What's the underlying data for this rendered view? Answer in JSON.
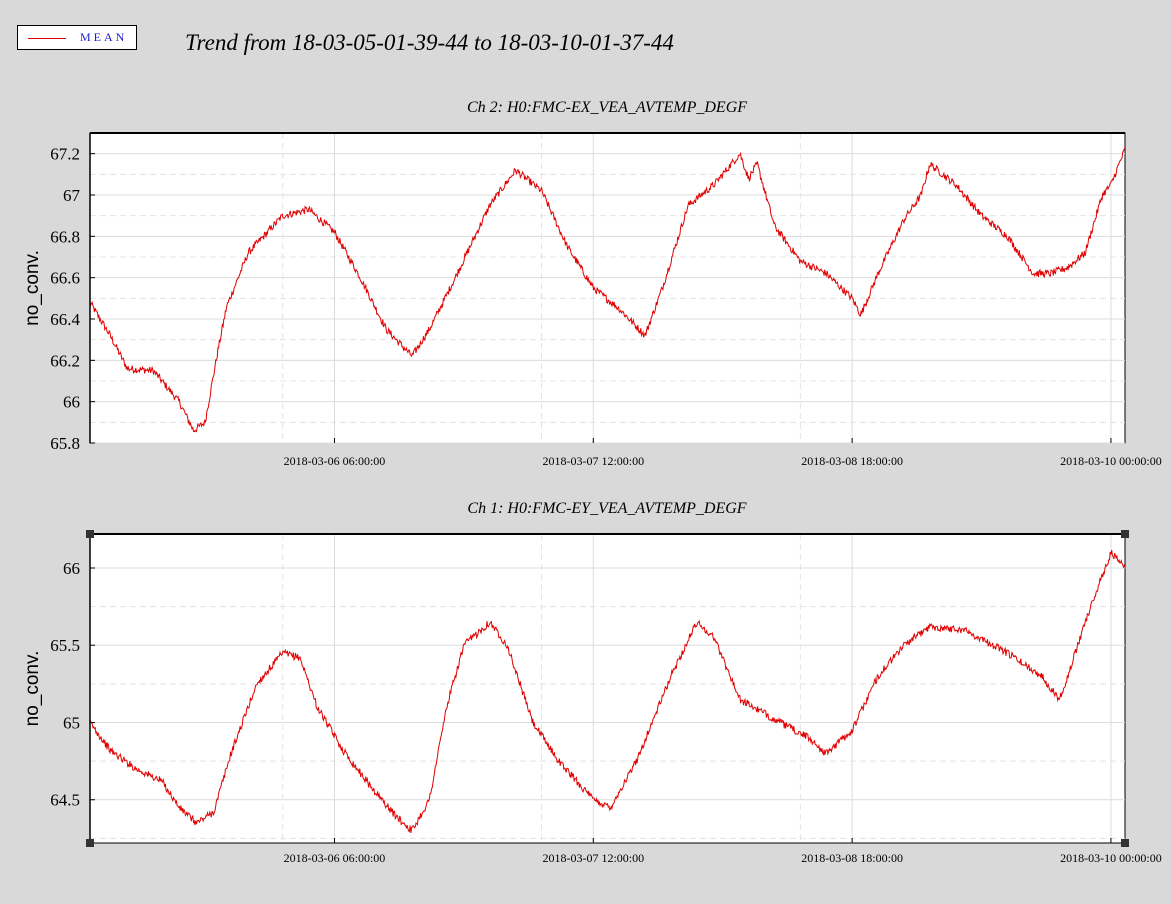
{
  "legend": {
    "label": "MEAN",
    "color": "#e00000"
  },
  "title": "Trend from 18-03-05-01-39-44 to 18-03-10-01-37-44",
  "colors": {
    "background": "#d9d9d9",
    "plot_bg": "#ffffff",
    "line": "#e00000",
    "grid": "#dcdcdc"
  },
  "chart_data": [
    {
      "type": "line",
      "title": "Ch 2: H0:FMC-EX_VEA_AVTEMP_DEGF",
      "ylabel": "no_conv.",
      "xlabel": "",
      "x_range": [
        "2018-03-05 01:39:44",
        "2018-03-10 01:37:44"
      ],
      "xticks": [
        "2018-03-06 06:00:00",
        "2018-03-07 12:00:00",
        "2018-03-08 18:00:00",
        "2018-03-10 00:00:00"
      ],
      "ylim": [
        65.8,
        67.3
      ],
      "yticks": [
        65.8,
        66,
        66.2,
        66.4,
        66.6,
        66.8,
        67,
        67.2
      ],
      "grid": true,
      "series": [
        {
          "name": "MEAN",
          "color": "#e00000",
          "points": [
            [
              "2018-03-05 01:40",
              66.48
            ],
            [
              "2018-03-05 04:00",
              66.32
            ],
            [
              "2018-03-05 06:00",
              66.16
            ],
            [
              "2018-03-05 09:00",
              66.15
            ],
            [
              "2018-03-05 12:00",
              66.0
            ],
            [
              "2018-03-05 13:40",
              65.86
            ],
            [
              "2018-03-05 15:00",
              65.9
            ],
            [
              "2018-03-05 16:30",
              66.25
            ],
            [
              "2018-03-05 17:30",
              66.46
            ],
            [
              "2018-03-05 20:00",
              66.72
            ],
            [
              "2018-03-06 00:00",
              66.9
            ],
            [
              "2018-03-06 03:00",
              66.93
            ],
            [
              "2018-03-06 06:00",
              66.82
            ],
            [
              "2018-03-06 09:00",
              66.6
            ],
            [
              "2018-03-06 12:00",
              66.35
            ],
            [
              "2018-03-06 15:00",
              66.22
            ],
            [
              "2018-03-06 17:00",
              66.35
            ],
            [
              "2018-03-06 20:00",
              66.6
            ],
            [
              "2018-03-07 00:00",
              66.95
            ],
            [
              "2018-03-07 03:00",
              67.12
            ],
            [
              "2018-03-07 06:00",
              67.02
            ],
            [
              "2018-03-07 09:00",
              66.75
            ],
            [
              "2018-03-07 12:00",
              66.55
            ],
            [
              "2018-03-07 15:00",
              66.45
            ],
            [
              "2018-03-07 18:00",
              66.32
            ],
            [
              "2018-03-07 20:00",
              66.55
            ],
            [
              "2018-03-07 23:00",
              66.95
            ],
            [
              "2018-03-08 02:00",
              67.05
            ],
            [
              "2018-03-08 05:00",
              67.2
            ],
            [
              "2018-03-08 06:00",
              67.08
            ],
            [
              "2018-03-08 07:00",
              67.15
            ],
            [
              "2018-03-08 09:00",
              66.85
            ],
            [
              "2018-03-08 12:00",
              66.68
            ],
            [
              "2018-03-08 15:00",
              66.62
            ],
            [
              "2018-03-08 18:00",
              66.5
            ],
            [
              "2018-03-08 19:00",
              66.42
            ],
            [
              "2018-03-08 21:00",
              66.62
            ],
            [
              "2018-03-09 00:00",
              66.88
            ],
            [
              "2018-03-09 02:00",
              67.0
            ],
            [
              "2018-03-09 03:00",
              67.15
            ],
            [
              "2018-03-09 06:00",
              67.05
            ],
            [
              "2018-03-09 09:00",
              66.9
            ],
            [
              "2018-03-09 12:00",
              66.8
            ],
            [
              "2018-03-09 14:00",
              66.68
            ],
            [
              "2018-03-09 15:00",
              66.62
            ],
            [
              "2018-03-09 17:00",
              66.62
            ],
            [
              "2018-03-09 19:00",
              66.65
            ],
            [
              "2018-03-09 21:00",
              66.72
            ],
            [
              "2018-03-09 23:00",
              67.0
            ],
            [
              "2018-03-10 00:00",
              67.05
            ],
            [
              "2018-03-10 01:37",
              67.22
            ]
          ]
        }
      ]
    },
    {
      "type": "line",
      "title": "Ch 1: H0:FMC-EY_VEA_AVTEMP_DEGF",
      "ylabel": "no_conv.",
      "xlabel": "",
      "x_range": [
        "2018-03-05 01:39:44",
        "2018-03-10 01:37:44"
      ],
      "xticks": [
        "2018-03-06 06:00:00",
        "2018-03-07 12:00:00",
        "2018-03-08 18:00:00",
        "2018-03-10 00:00:00"
      ],
      "ylim": [
        64.22,
        66.22
      ],
      "yticks": [
        64.5,
        65,
        65.5,
        66
      ],
      "grid": true,
      "series": [
        {
          "name": "MEAN",
          "color": "#e00000",
          "points": [
            [
              "2018-03-05 01:40",
              65.0
            ],
            [
              "2018-03-05 04:00",
              64.82
            ],
            [
              "2018-03-05 07:00",
              64.7
            ],
            [
              "2018-03-05 10:00",
              64.62
            ],
            [
              "2018-03-05 12:00",
              64.45
            ],
            [
              "2018-03-05 14:00",
              64.35
            ],
            [
              "2018-03-05 16:00",
              64.42
            ],
            [
              "2018-03-05 18:00",
              64.8
            ],
            [
              "2018-03-05 21:00",
              65.25
            ],
            [
              "2018-03-06 00:00",
              65.45
            ],
            [
              "2018-03-06 02:00",
              65.42
            ],
            [
              "2018-03-06 04:00",
              65.1
            ],
            [
              "2018-03-06 07:00",
              64.82
            ],
            [
              "2018-03-06 10:00",
              64.6
            ],
            [
              "2018-03-06 13:00",
              64.4
            ],
            [
              "2018-03-06 15:00",
              64.3
            ],
            [
              "2018-03-06 17:00",
              64.5
            ],
            [
              "2018-03-06 19:00",
              65.1
            ],
            [
              "2018-03-06 21:00",
              65.5
            ],
            [
              "2018-03-07 00:00",
              65.65
            ],
            [
              "2018-03-07 02:00",
              65.5
            ],
            [
              "2018-03-07 05:00",
              65.0
            ],
            [
              "2018-03-07 08:00",
              64.75
            ],
            [
              "2018-03-07 12:00",
              64.5
            ],
            [
              "2018-03-07 14:00",
              64.45
            ],
            [
              "2018-03-07 17:00",
              64.75
            ],
            [
              "2018-03-07 21:00",
              65.3
            ],
            [
              "2018-03-08 00:00",
              65.65
            ],
            [
              "2018-03-08 02:00",
              65.55
            ],
            [
              "2018-03-08 05:00",
              65.15
            ],
            [
              "2018-03-08 09:00",
              65.02
            ],
            [
              "2018-03-08 13:00",
              64.9
            ],
            [
              "2018-03-08 15:00",
              64.8
            ],
            [
              "2018-03-08 18:00",
              64.95
            ],
            [
              "2018-03-08 21:00",
              65.3
            ],
            [
              "2018-03-09 00:00",
              65.5
            ],
            [
              "2018-03-09 03:00",
              65.62
            ],
            [
              "2018-03-09 07:00",
              65.6
            ],
            [
              "2018-03-09 12:00",
              65.45
            ],
            [
              "2018-03-09 16:00",
              65.3
            ],
            [
              "2018-03-09 18:00",
              65.15
            ],
            [
              "2018-03-09 19:00",
              65.3
            ],
            [
              "2018-03-09 21:00",
              65.65
            ],
            [
              "2018-03-09 23:00",
              65.95
            ],
            [
              "2018-03-10 00:00",
              66.1
            ],
            [
              "2018-03-10 01:37",
              66.0
            ]
          ]
        }
      ]
    }
  ]
}
